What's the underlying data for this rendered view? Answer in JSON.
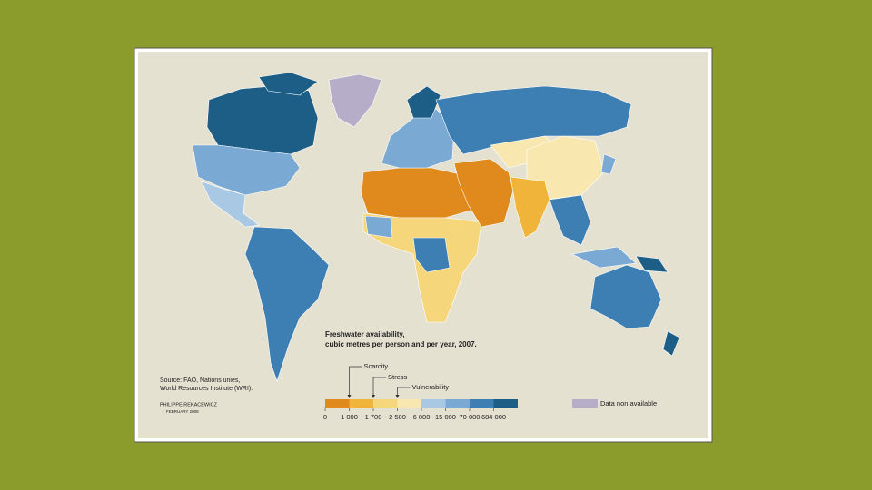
{
  "map": {
    "title": "Freshwater availability,",
    "subtitle": "cubic metres per person and per year, 2007.",
    "source": [
      "Source: FAO, Nations unies,",
      "World Resources Institute (WRI)."
    ],
    "author": "PHILIPPE REKACEWICZ",
    "date": "FEBRUARY 2008",
    "legend": {
      "colors": [
        "#e08a1e",
        "#f0b43a",
        "#f6d67a",
        "#f8e8b0",
        "#a9c8e4",
        "#7aaad4",
        "#3d7fb2",
        "#1d5e86"
      ],
      "ticks": [
        {
          "value": 0,
          "label": "0"
        },
        {
          "value": 1000,
          "label": "1 000"
        },
        {
          "value": 1700,
          "label": "1 700"
        },
        {
          "value": 2500,
          "label": "2 500"
        },
        {
          "value": 6000,
          "label": "6 000"
        },
        {
          "value": 15000,
          "label": "15 000"
        },
        {
          "value": 70000,
          "label": "70 000"
        },
        {
          "value": 684000,
          "label": "684 000"
        }
      ],
      "thresholds": [
        "Scarcity",
        "Stress",
        "Vulnerability"
      ],
      "na_color": "#b6aec8",
      "na_label": "Data non available"
    }
  }
}
